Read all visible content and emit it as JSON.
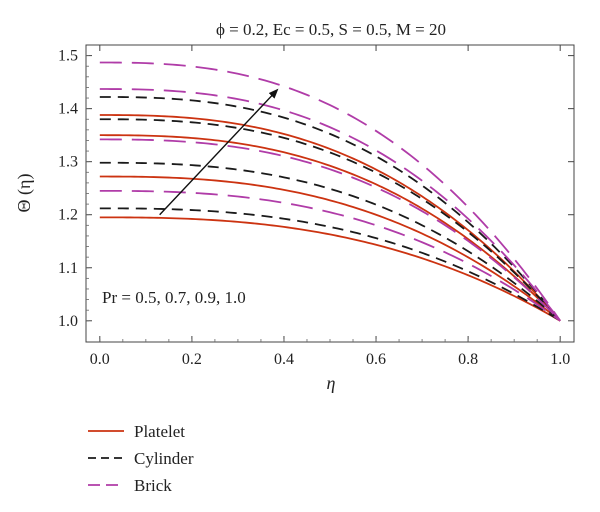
{
  "chart_data": {
    "type": "line",
    "title": "ϕ = 0.2, Ec = 0.5, S = 0.5, M = 20",
    "xlabel": "η",
    "ylabel": "Θ (η)",
    "xlim": [
      -0.03,
      1.03
    ],
    "ylim": [
      0.96,
      1.52
    ],
    "xticks": [
      "0.0",
      "0.2",
      "0.4",
      "0.6",
      "0.8",
      "1.0"
    ],
    "yticks": [
      "1.0",
      "1.1",
      "1.2",
      "1.3",
      "1.4",
      "1.5"
    ],
    "annotation": "Pr = 0.5, 0.7, 0.9, 1.0",
    "arrow": {
      "direction": "increasing Pr",
      "from": [
        0.13,
        1.2
      ],
      "to": [
        0.385,
        1.435
      ]
    },
    "grid": false,
    "legend_position": "bottom-left",
    "pr_values": [
      0.5,
      0.7,
      0.9,
      1.0
    ],
    "series": [
      {
        "name": "Platelet",
        "style": "solid",
        "color": "#cc3311",
        "curves": [
          {
            "pr": 0.5,
            "theta0": 1.195
          },
          {
            "pr": 0.7,
            "theta0": 1.272
          },
          {
            "pr": 0.9,
            "theta0": 1.35
          },
          {
            "pr": 1.0,
            "theta0": 1.388
          }
        ]
      },
      {
        "name": "Cylinder",
        "style": "dashed",
        "color": "#1a1a1a",
        "curves": [
          {
            "pr": 0.5,
            "theta0": 1.212
          },
          {
            "pr": 0.7,
            "theta0": 1.298
          },
          {
            "pr": 0.9,
            "theta0": 1.38
          },
          {
            "pr": 1.0,
            "theta0": 1.422
          }
        ]
      },
      {
        "name": "Brick",
        "style": "long-dashed",
        "color": "#b03ca8",
        "curves": [
          {
            "pr": 0.5,
            "theta0": 1.245
          },
          {
            "pr": 0.7,
            "theta0": 1.342
          },
          {
            "pr": 0.9,
            "theta0": 1.437
          },
          {
            "pr": 1.0,
            "theta0": 1.487
          }
        ]
      }
    ]
  }
}
